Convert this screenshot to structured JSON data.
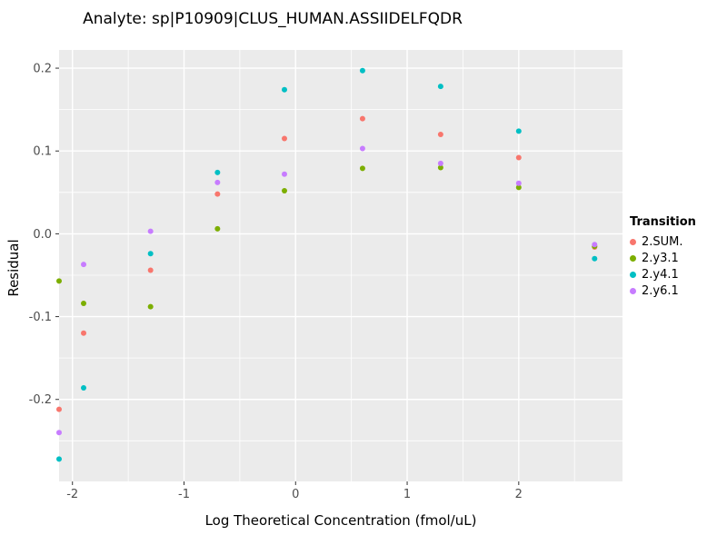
{
  "chart_data": {
    "type": "scatter",
    "title": "Analyte: sp|P10909|CLUS_HUMAN.ASSIIDELFQDR",
    "xlabel": "Log Theoretical Concentration (fmol/uL)",
    "ylabel": "Residual",
    "xlim": [
      -2.12,
      2.93
    ],
    "ylim": [
      -0.299,
      0.222
    ],
    "grid": true,
    "panel_color": "#EBEBEB",
    "gridline_color": "#FFFFFF",
    "tick_label_color": "#4D4D4D",
    "x_ticks": [
      {
        "value": -2,
        "label": "-2"
      },
      {
        "value": -1,
        "label": "-1"
      },
      {
        "value": 0,
        "label": "0"
      },
      {
        "value": 1,
        "label": "1"
      },
      {
        "value": 2,
        "label": "2"
      }
    ],
    "y_ticks": [
      {
        "value": 0.2,
        "label": "0.2"
      },
      {
        "value": 0.1,
        "label": "0.1"
      },
      {
        "value": 0.0,
        "label": "0.0"
      },
      {
        "value": -0.1,
        "label": "-0.1"
      },
      {
        "value": -0.2,
        "label": "-0.2"
      }
    ],
    "x_minor_ticks": [
      -1.5,
      -0.5,
      0.5,
      1.5,
      2.5
    ],
    "y_minor_ticks": [
      -0.25,
      -0.15,
      -0.05,
      0.05,
      0.15
    ],
    "legend_title": "Transition",
    "legend_position": "right",
    "series": [
      {
        "name": "2.SUM.",
        "color": "#F8766D",
        "points": [
          [
            -2.12,
            -0.212
          ],
          [
            -1.9,
            -0.12
          ],
          [
            -1.3,
            -0.044
          ],
          [
            -0.7,
            0.048
          ],
          [
            -0.1,
            0.115
          ],
          [
            0.6,
            0.139
          ],
          [
            1.3,
            0.12
          ],
          [
            2.0,
            0.092
          ],
          [
            2.68,
            -0.016
          ]
        ]
      },
      {
        "name": "2.y3.1",
        "color": "#7CAE00",
        "points": [
          [
            -2.12,
            -0.057
          ],
          [
            -1.9,
            -0.084
          ],
          [
            -1.3,
            -0.088
          ],
          [
            -0.7,
            0.006
          ],
          [
            -0.1,
            0.052
          ],
          [
            0.6,
            0.079
          ],
          [
            1.3,
            0.08
          ],
          [
            2.0,
            0.056
          ],
          [
            2.68,
            -0.015
          ]
        ]
      },
      {
        "name": "2.y4.1",
        "color": "#00BFC4",
        "points": [
          [
            -2.12,
            -0.272
          ],
          [
            -1.9,
            -0.186
          ],
          [
            -1.3,
            -0.024
          ],
          [
            -0.7,
            0.074
          ],
          [
            -0.1,
            0.174
          ],
          [
            0.6,
            0.197
          ],
          [
            1.3,
            0.178
          ],
          [
            2.0,
            0.124
          ],
          [
            2.68,
            -0.03
          ]
        ]
      },
      {
        "name": "2.y6.1",
        "color": "#C77CFF",
        "points": [
          [
            -2.12,
            -0.24
          ],
          [
            -1.9,
            -0.037
          ],
          [
            -1.3,
            0.003
          ],
          [
            -0.7,
            0.062
          ],
          [
            -0.1,
            0.072
          ],
          [
            0.6,
            0.103
          ],
          [
            1.3,
            0.085
          ],
          [
            2.0,
            0.061
          ],
          [
            2.68,
            -0.013
          ]
        ]
      }
    ]
  }
}
